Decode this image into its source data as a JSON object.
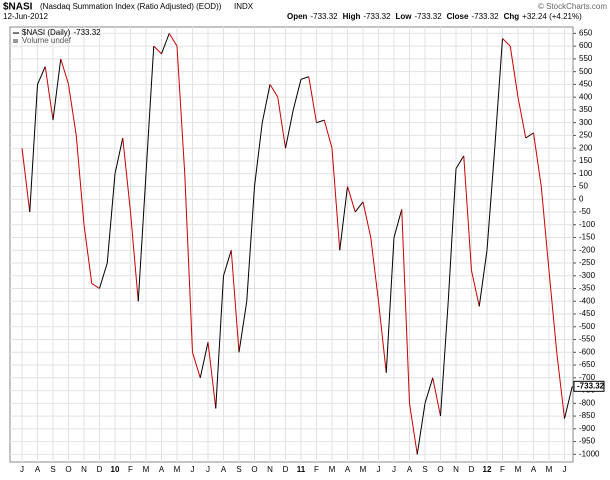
{
  "header": {
    "symbol": "$NASI",
    "name": "(Nasdaq Summation Index (Ratio Adjusted) (EOD))",
    "exchange": "INDX",
    "date": "12-Jun-2012",
    "credit": "© StockCharts.com",
    "quote": [
      {
        "label": "Open",
        "value": -733.32
      },
      {
        "label": "High",
        "value": -733.32
      },
      {
        "label": "Low",
        "value": -733.32
      },
      {
        "label": "Close",
        "value": -733.32
      },
      {
        "label": "Chg",
        "value": "+32.24 (+4.21%)"
      }
    ]
  },
  "chart_data": {
    "type": "line",
    "legend": [
      {
        "label": "$NASI (Daily)",
        "value": -733.32
      },
      {
        "label": "Volume undef"
      }
    ],
    "last_label": "-733.32",
    "up_color": "#000000",
    "down_color": "#cc0000",
    "grid": true,
    "categories": [
      "J",
      null,
      "A",
      null,
      "S",
      null,
      "O",
      null,
      "N",
      null,
      "D",
      null,
      "10",
      null,
      "F",
      null,
      "M",
      null,
      "A",
      null,
      "M",
      null,
      "J",
      null,
      "J",
      null,
      "A",
      null,
      "S",
      null,
      "O",
      null,
      "N",
      null,
      "D",
      null,
      "11",
      null,
      "F",
      null,
      "M",
      null,
      "A",
      null,
      "M",
      null,
      "J",
      null,
      "J",
      null,
      "A",
      null,
      "S",
      null,
      "O",
      null,
      "N",
      null,
      "D",
      null,
      "12",
      null,
      "F",
      null,
      "M",
      null,
      "A",
      null,
      "M",
      null,
      "J",
      null
    ],
    "series": [
      {
        "name": "$NASI",
        "values": [
          200,
          -50,
          450,
          520,
          310,
          550,
          450,
          250,
          -100,
          -330,
          -350,
          -250,
          100,
          240,
          -50,
          -400,
          100,
          600,
          570,
          650,
          600,
          100,
          -600,
          -700,
          -560,
          -820,
          -300,
          -200,
          -600,
          -400,
          50,
          300,
          450,
          400,
          200,
          350,
          470,
          480,
          300,
          310,
          200,
          -200,
          50,
          -50,
          -10,
          -150,
          -400,
          -680,
          -150,
          -40,
          -800,
          -1000,
          -800,
          -700,
          -850,
          -400,
          120,
          170,
          -280,
          -420,
          -200,
          200,
          630,
          600,
          400,
          240,
          260,
          50,
          -280,
          -600,
          -860,
          -733.32
        ]
      }
    ],
    "ylim": [
      -1030,
      675
    ],
    "yticks": [
      650,
      600,
      550,
      500,
      450,
      400,
      350,
      300,
      250,
      200,
      150,
      100,
      50,
      0,
      -50,
      -100,
      -150,
      -200,
      -250,
      -300,
      -350,
      -400,
      -450,
      -500,
      -550,
      -600,
      -650,
      -700,
      -750,
      -800,
      -850,
      -900,
      -950,
      -1000
    ]
  }
}
